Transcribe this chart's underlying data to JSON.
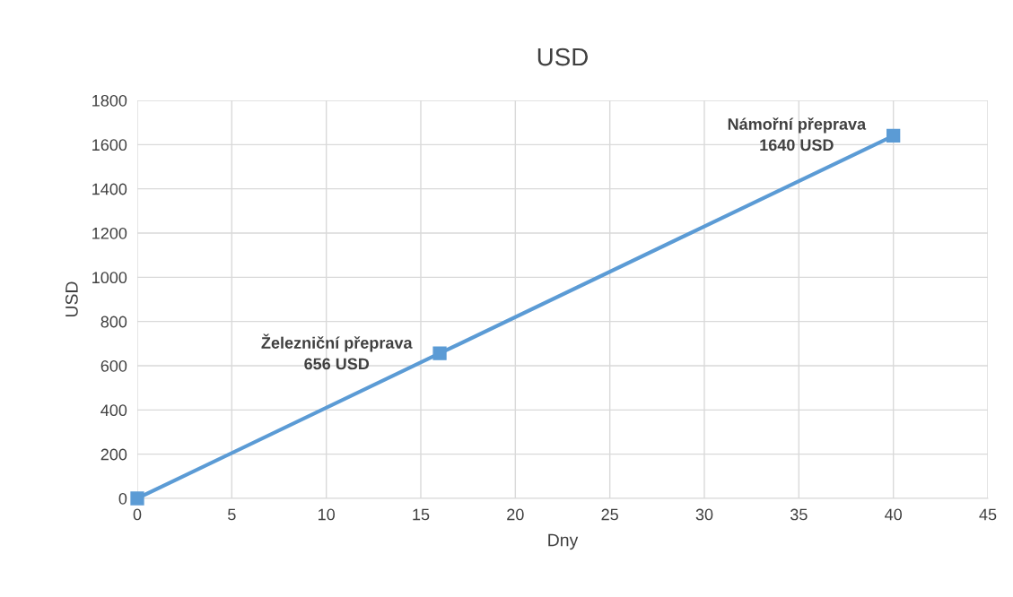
{
  "chart_data": {
    "type": "line",
    "title": "USD",
    "xlabel": "Dny",
    "ylabel": "USD",
    "x": [
      0,
      16,
      40
    ],
    "series": [
      {
        "color": "#5b9bd5",
        "values": [
          0,
          656,
          1640
        ]
      }
    ],
    "marker": "square",
    "line_style": "solid",
    "xlim": [
      0,
      45
    ],
    "xticks": [
      0,
      5,
      10,
      15,
      20,
      25,
      30,
      35,
      40,
      45
    ],
    "ylim": [
      0,
      1800
    ],
    "yticks": [
      0,
      200,
      400,
      600,
      800,
      1000,
      1200,
      1400,
      1600,
      1800
    ],
    "grid": true,
    "annotations": [
      {
        "text": "Železniční přeprava\n656 USD",
        "x": 16,
        "y": 656
      },
      {
        "text": "Námořní přeprava\n1640 USD",
        "x": 40,
        "y": 1640
      }
    ]
  }
}
